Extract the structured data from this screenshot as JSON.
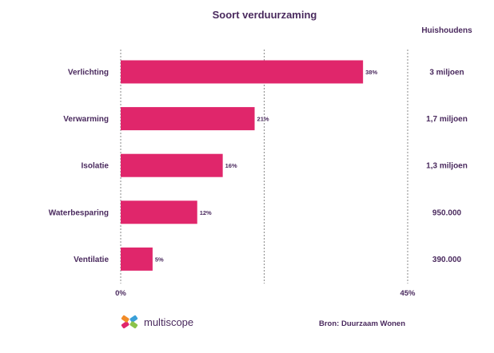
{
  "chart_data": {
    "type": "bar",
    "orientation": "horizontal",
    "title": "Soort verduurzaming",
    "categories": [
      "Verlichting",
      "Verwarming",
      "Isolatie",
      "Waterbesparing",
      "Ventilatie"
    ],
    "values": [
      38,
      21,
      16,
      12,
      5
    ],
    "value_labels": [
      "38%",
      "21%",
      "16%",
      "12%",
      "5%"
    ],
    "xlim": [
      0,
      45
    ],
    "x_ticks": [
      "0%",
      "45%"
    ],
    "grid": "vertical dashed",
    "bar_color": "#e0266b",
    "text_color": "#4a2a5e",
    "households_header": "Huishoudens",
    "households": [
      "3 miljoen",
      "1,7 miljoen",
      "1,3 miljoen",
      "950.000",
      "390.000"
    ]
  },
  "footer": {
    "logo_text": "multiscope",
    "source": "Bron: Duurzaam Wonen"
  }
}
